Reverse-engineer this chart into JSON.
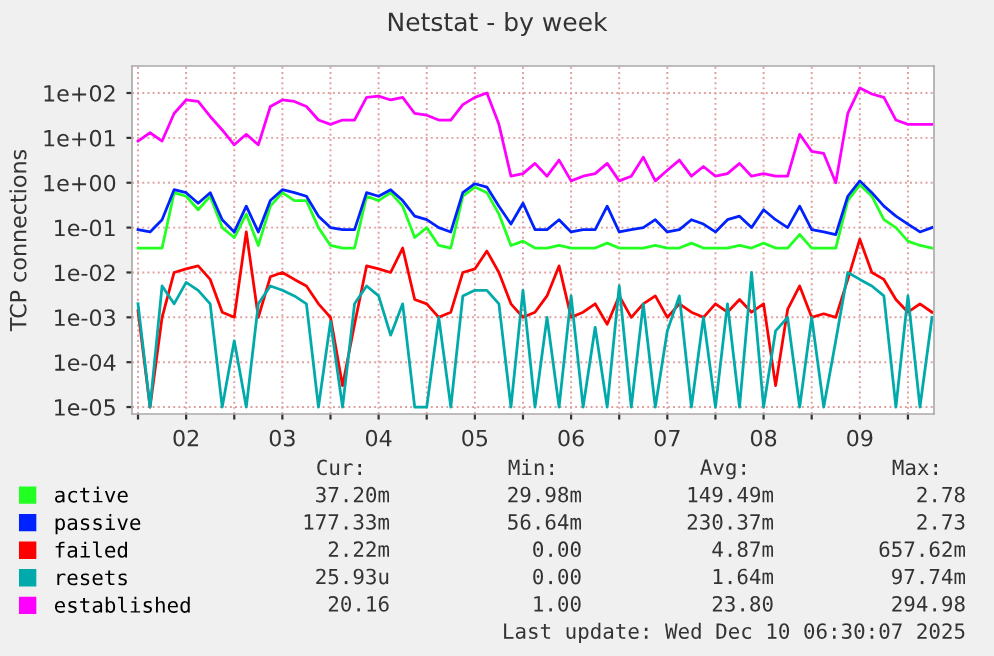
{
  "chart_data": {
    "type": "line",
    "title": "Netstat - by week",
    "ylabel": "TCP connections",
    "x": [
      "2025-12-02T00:00",
      "2025-12-02T03:00",
      "2025-12-02T06:00",
      "2025-12-02T09:00",
      "2025-12-02T12:00",
      "2025-12-02T15:00",
      "2025-12-02T18:00",
      "2025-12-02T21:00",
      "2025-12-03T00:00",
      "2025-12-03T03:00",
      "2025-12-03T06:00",
      "2025-12-03T09:00",
      "2025-12-03T12:00",
      "2025-12-03T15:00",
      "2025-12-03T18:00",
      "2025-12-03T21:00",
      "2025-12-04T00:00",
      "2025-12-04T03:00",
      "2025-12-04T06:00",
      "2025-12-04T09:00",
      "2025-12-04T12:00",
      "2025-12-04T15:00",
      "2025-12-04T18:00",
      "2025-12-04T21:00",
      "2025-12-05T00:00",
      "2025-12-05T03:00",
      "2025-12-05T06:00",
      "2025-12-05T09:00",
      "2025-12-05T12:00",
      "2025-12-05T15:00",
      "2025-12-05T18:00",
      "2025-12-05T21:00",
      "2025-12-06T00:00",
      "2025-12-06T03:00",
      "2025-12-06T06:00",
      "2025-12-06T09:00",
      "2025-12-06T12:00",
      "2025-12-06T15:00",
      "2025-12-06T18:00",
      "2025-12-06T21:00",
      "2025-12-07T00:00",
      "2025-12-07T03:00",
      "2025-12-07T06:00",
      "2025-12-07T09:00",
      "2025-12-07T12:00",
      "2025-12-07T15:00",
      "2025-12-07T18:00",
      "2025-12-07T21:00",
      "2025-12-08T00:00",
      "2025-12-08T03:00",
      "2025-12-08T06:00",
      "2025-12-08T09:00",
      "2025-12-08T12:00",
      "2025-12-08T15:00",
      "2025-12-08T18:00",
      "2025-12-08T21:00",
      "2025-12-09T00:00",
      "2025-12-09T03:00",
      "2025-12-09T06:00",
      "2025-12-09T09:00",
      "2025-12-09T12:00",
      "2025-12-09T15:00",
      "2025-12-09T18:00",
      "2025-12-09T21:00",
      "2025-12-10T00:00",
      "2025-12-10T03:00",
      "2025-12-10T06:00"
    ],
    "series": [
      {
        "name": "active",
        "color": "#22ff22",
        "values": [
          0.035,
          0.035,
          0.035,
          0.6,
          0.5,
          0.25,
          0.5,
          0.1,
          0.06,
          0.2,
          0.04,
          0.3,
          0.6,
          0.4,
          0.4,
          0.1,
          0.04,
          0.035,
          0.035,
          0.5,
          0.4,
          0.6,
          0.3,
          0.06,
          0.1,
          0.04,
          0.035,
          0.5,
          0.8,
          0.6,
          0.2,
          0.04,
          0.05,
          0.035,
          0.035,
          0.04,
          0.035,
          0.035,
          0.035,
          0.045,
          0.035,
          0.035,
          0.035,
          0.04,
          0.035,
          0.035,
          0.045,
          0.035,
          0.035,
          0.035,
          0.04,
          0.035,
          0.045,
          0.035,
          0.035,
          0.07,
          0.035,
          0.035,
          0.035,
          0.4,
          0.9,
          0.5,
          0.15,
          0.1,
          0.05,
          0.04,
          0.035
        ]
      },
      {
        "name": "passive",
        "color": "#0022ff",
        "values": [
          0.09,
          0.08,
          0.15,
          0.7,
          0.6,
          0.35,
          0.6,
          0.15,
          0.08,
          0.3,
          0.08,
          0.4,
          0.7,
          0.6,
          0.5,
          0.18,
          0.1,
          0.09,
          0.09,
          0.6,
          0.5,
          0.7,
          0.4,
          0.18,
          0.15,
          0.1,
          0.08,
          0.6,
          0.95,
          0.8,
          0.3,
          0.12,
          0.35,
          0.09,
          0.09,
          0.15,
          0.08,
          0.09,
          0.09,
          0.3,
          0.08,
          0.09,
          0.1,
          0.15,
          0.08,
          0.09,
          0.15,
          0.12,
          0.08,
          0.15,
          0.18,
          0.1,
          0.25,
          0.15,
          0.1,
          0.3,
          0.09,
          0.08,
          0.07,
          0.5,
          1.1,
          0.6,
          0.3,
          0.18,
          0.12,
          0.08,
          0.1
        ]
      },
      {
        "name": "failed",
        "color": "#ff0000",
        "values": [
          0.0014,
          1e-05,
          0.001,
          0.01,
          0.012,
          0.014,
          0.007,
          0.0013,
          0.001,
          0.08,
          0.001,
          0.008,
          0.01,
          0.007,
          0.005,
          0.002,
          0.001,
          3e-05,
          0.0007,
          0.014,
          0.012,
          0.01,
          0.035,
          0.0025,
          0.002,
          0.001,
          0.0013,
          0.01,
          0.012,
          0.03,
          0.01,
          0.002,
          0.001,
          0.0013,
          0.003,
          0.014,
          0.001,
          0.0013,
          0.002,
          0.0007,
          0.003,
          0.001,
          0.002,
          0.003,
          0.001,
          0.002,
          0.0013,
          0.001,
          0.002,
          0.0013,
          0.0025,
          0.0013,
          0.002,
          3e-05,
          0.0015,
          0.005,
          0.001,
          0.0012,
          0.001,
          0.007,
          0.055,
          0.01,
          0.007,
          0.0025,
          0.0013,
          0.002,
          0.0013
        ]
      },
      {
        "name": "resets",
        "color": "#00aaaa",
        "values": [
          0.002,
          1e-05,
          0.005,
          0.002,
          0.006,
          0.004,
          0.002,
          1e-05,
          0.0003,
          1e-05,
          0.002,
          0.005,
          0.004,
          0.003,
          0.002,
          1e-05,
          0.0008,
          1e-05,
          0.002,
          0.005,
          0.003,
          0.0004,
          0.002,
          1e-05,
          1e-05,
          0.001,
          1e-05,
          0.003,
          0.004,
          0.004,
          0.002,
          1e-05,
          0.004,
          1e-05,
          0.001,
          1e-05,
          0.003,
          1e-05,
          0.0006,
          1e-05,
          0.005,
          1e-05,
          0.002,
          1e-05,
          0.0005,
          0.003,
          1e-05,
          0.001,
          1e-05,
          0.002,
          1e-05,
          0.01,
          1e-05,
          0.0005,
          0.001,
          1e-05,
          0.001,
          1e-05,
          0.0003,
          0.01,
          0.007,
          0.005,
          0.003,
          1e-05,
          0.003,
          1e-05,
          0.001
        ]
      },
      {
        "name": "established",
        "color": "#ff00ff",
        "values": [
          8.5,
          13,
          8.5,
          35,
          70,
          65,
          30,
          15,
          7,
          12,
          7,
          50,
          70,
          65,
          50,
          25,
          20,
          25,
          25,
          80,
          85,
          70,
          80,
          35,
          32,
          25,
          25,
          55,
          80,
          100,
          20,
          1.4,
          1.6,
          2.7,
          1.4,
          3.2,
          1.1,
          1.4,
          1.6,
          2.7,
          1.1,
          1.4,
          3.7,
          1.1,
          1.9,
          3.2,
          1.4,
          2.3,
          1.4,
          1.6,
          2.7,
          1.4,
          1.6,
          1.4,
          1.4,
          12,
          5,
          4.5,
          1.0,
          35,
          130,
          95,
          80,
          25,
          20,
          20,
          20
        ]
      }
    ],
    "log": "y",
    "xlim": [
      "2025-12-01T22:30",
      "2025-12-10T06:30"
    ],
    "xticks": [
      {
        "value": "2025-12-02T00:00",
        "label": null
      },
      {
        "value": "2025-12-02T12:00",
        "label": "02"
      },
      {
        "value": "2025-12-03T00:00",
        "label": null
      },
      {
        "value": "2025-12-03T12:00",
        "label": "03"
      },
      {
        "value": "2025-12-04T00:00",
        "label": null
      },
      {
        "value": "2025-12-04T12:00",
        "label": "04"
      },
      {
        "value": "2025-12-05T00:00",
        "label": null
      },
      {
        "value": "2025-12-05T12:00",
        "label": "05"
      },
      {
        "value": "2025-12-06T00:00",
        "label": null
      },
      {
        "value": "2025-12-06T12:00",
        "label": "06"
      },
      {
        "value": "2025-12-07T00:00",
        "label": null
      },
      {
        "value": "2025-12-07T12:00",
        "label": "07"
      },
      {
        "value": "2025-12-08T00:00",
        "label": null
      },
      {
        "value": "2025-12-08T12:00",
        "label": "08"
      },
      {
        "value": "2025-12-09T00:00",
        "label": null
      },
      {
        "value": "2025-12-09T12:00",
        "label": "09"
      },
      {
        "value": "2025-12-10T00:00",
        "label": null
      }
    ],
    "ylim": [
      7e-06,
      400
    ],
    "yticks": [
      {
        "value": 1e-05,
        "label": "1e-05"
      },
      {
        "value": 0.0001,
        "label": "1e-04"
      },
      {
        "value": 0.001,
        "label": "1e-03"
      },
      {
        "value": 0.01,
        "label": "1e-02"
      },
      {
        "value": 0.1,
        "label": "1e-01"
      },
      {
        "value": 1,
        "label": "1e+00"
      },
      {
        "value": 10,
        "label": "1e+01"
      },
      {
        "value": 100,
        "label": "1e+02"
      }
    ],
    "grid": true,
    "legend": "bottom",
    "annotations": [
      "Cur:",
      "Min:",
      "Avg:",
      "Max:",
      "37.20m",
      "29.98m",
      "149.49m",
      "2.78",
      "177.33m",
      "56.64m",
      "230.37m",
      "2.73",
      "2.22m",
      "0.00",
      "4.87m",
      "657.62m",
      "25.93u",
      "0.00",
      "1.64m",
      "97.74m",
      "20.16",
      "1.00",
      "23.80",
      "294.98",
      "Last update: Wed Dec 10 06:30:07 2025"
    ]
  }
}
